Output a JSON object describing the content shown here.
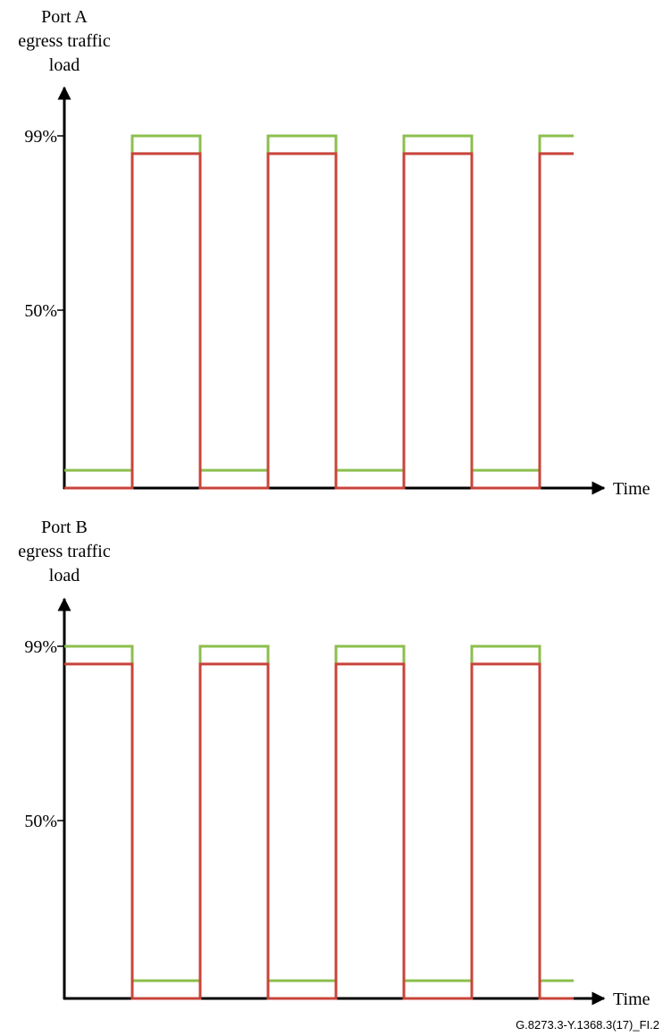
{
  "figure_id": "G.8273.3-Y.1368.3(17)_FI.2",
  "colors": {
    "green": "#8cbf4e",
    "red": "#c8443a",
    "axis": "#000000"
  },
  "chart_data": [
    {
      "type": "line",
      "ylabel_lines": [
        "Port A",
        "egress traffic",
        "load"
      ],
      "xlabel": "Time",
      "yticks": [
        {
          "value": 50,
          "label": "50%"
        },
        {
          "value": 99,
          "label": "99%"
        }
      ],
      "ylim": [
        0,
        100
      ],
      "xlim": [
        0,
        11
      ],
      "series": [
        {
          "color": "green",
          "points": [
            [
              0,
              5
            ],
            [
              1,
              5
            ],
            [
              1,
              99
            ],
            [
              2,
              99
            ],
            [
              2,
              5
            ],
            [
              3,
              5
            ],
            [
              3,
              99
            ],
            [
              4,
              99
            ],
            [
              4,
              5
            ],
            [
              5,
              5
            ],
            [
              5,
              99
            ],
            [
              6,
              99
            ],
            [
              6,
              5
            ],
            [
              7,
              5
            ],
            [
              7,
              99
            ],
            [
              7.5,
              99
            ]
          ]
        },
        {
          "color": "red",
          "points": [
            [
              0,
              0
            ],
            [
              1,
              0
            ],
            [
              1,
              94
            ],
            [
              2,
              94
            ],
            [
              2,
              0
            ],
            [
              3,
              0
            ],
            [
              3,
              94
            ],
            [
              4,
              94
            ],
            [
              4,
              0
            ],
            [
              5,
              0
            ],
            [
              5,
              94
            ],
            [
              6,
              94
            ],
            [
              6,
              0
            ],
            [
              7,
              0
            ],
            [
              7,
              94
            ],
            [
              7.5,
              94
            ]
          ]
        }
      ]
    },
    {
      "type": "line",
      "ylabel_lines": [
        "Port B",
        "egress traffic",
        "load"
      ],
      "xlabel": "Time",
      "yticks": [
        {
          "value": 50,
          "label": "50%"
        },
        {
          "value": 99,
          "label": "99%"
        }
      ],
      "ylim": [
        0,
        100
      ],
      "xlim": [
        0,
        11
      ],
      "series": [
        {
          "color": "green",
          "points": [
            [
              0,
              99
            ],
            [
              1,
              99
            ],
            [
              1,
              5
            ],
            [
              2,
              5
            ],
            [
              2,
              99
            ],
            [
              3,
              99
            ],
            [
              3,
              5
            ],
            [
              4,
              5
            ],
            [
              4,
              99
            ],
            [
              5,
              99
            ],
            [
              5,
              5
            ],
            [
              6,
              5
            ],
            [
              6,
              99
            ],
            [
              7,
              99
            ],
            [
              7,
              5
            ],
            [
              7.5,
              5
            ]
          ]
        },
        {
          "color": "red",
          "points": [
            [
              0,
              94
            ],
            [
              1,
              94
            ],
            [
              1,
              0
            ],
            [
              2,
              0
            ],
            [
              2,
              94
            ],
            [
              3,
              94
            ],
            [
              3,
              0
            ],
            [
              4,
              0
            ],
            [
              4,
              94
            ],
            [
              5,
              94
            ],
            [
              5,
              0
            ],
            [
              6,
              0
            ],
            [
              6,
              94
            ],
            [
              7,
              94
            ],
            [
              7,
              0
            ],
            [
              7.5,
              0
            ]
          ]
        }
      ]
    }
  ]
}
